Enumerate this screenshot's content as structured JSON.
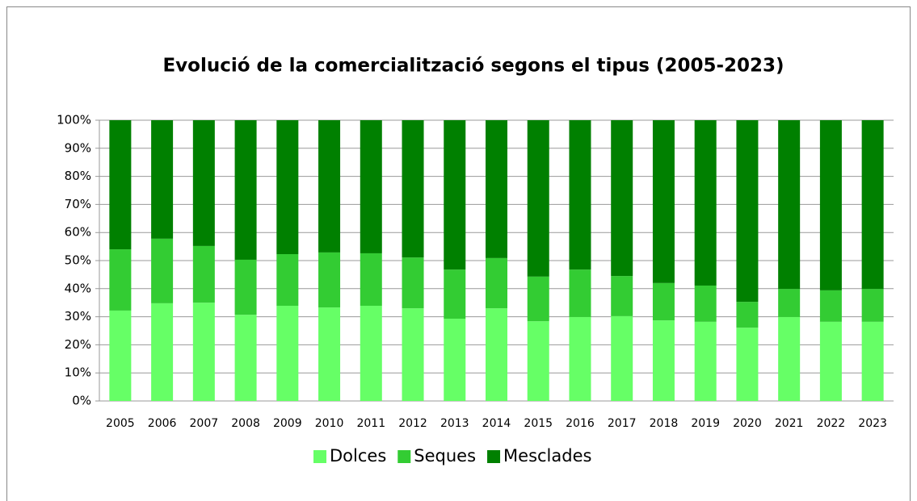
{
  "chart_data": {
    "type": "stacked_bar_percent",
    "title": "Evolució de la comercialització segons el tipus (2005-2023)",
    "categories": [
      "2005",
      "2006",
      "2007",
      "2008",
      "2009",
      "2010",
      "2011",
      "2012",
      "2013",
      "2014",
      "2015",
      "2016",
      "2017",
      "2018",
      "2019",
      "2020",
      "2021",
      "2022",
      "2023"
    ],
    "series": [
      {
        "name": "Dolces",
        "color": "#66ff66",
        "values": [
          32.2,
          34.8,
          35.0,
          30.7,
          33.9,
          33.3,
          33.9,
          33.0,
          29.3,
          33.0,
          28.4,
          29.9,
          30.2,
          28.7,
          28.2,
          26.1,
          29.9,
          28.2,
          28.2
        ]
      },
      {
        "name": "Seques",
        "color": "#33cc33",
        "values": [
          21.8,
          23.0,
          20.2,
          19.6,
          18.4,
          19.6,
          18.7,
          18.1,
          17.5,
          17.9,
          15.9,
          16.9,
          14.3,
          13.3,
          12.9,
          9.2,
          10.0,
          11.2,
          11.7
        ]
      },
      {
        "name": "Mesclades",
        "color": "#008000",
        "values": [
          46.0,
          42.2,
          44.8,
          49.7,
          47.7,
          47.1,
          47.4,
          48.9,
          53.2,
          49.1,
          55.7,
          53.2,
          55.5,
          58.0,
          58.9,
          64.7,
          60.1,
          60.6,
          60.1
        ]
      }
    ],
    "ylim": [
      0,
      100
    ],
    "yticks": [
      {
        "value": 0,
        "label": "0%"
      },
      {
        "value": 10,
        "label": "10%"
      },
      {
        "value": 20,
        "label": "20%"
      },
      {
        "value": 30,
        "label": "30%"
      },
      {
        "value": 40,
        "label": "40%"
      },
      {
        "value": 50,
        "label": "50%"
      },
      {
        "value": 60,
        "label": "60%"
      },
      {
        "value": 70,
        "label": "70%"
      },
      {
        "value": 80,
        "label": "80%"
      },
      {
        "value": 90,
        "label": "90%"
      },
      {
        "value": 100,
        "label": "100%"
      }
    ],
    "grid": true,
    "legend": "bottom"
  }
}
